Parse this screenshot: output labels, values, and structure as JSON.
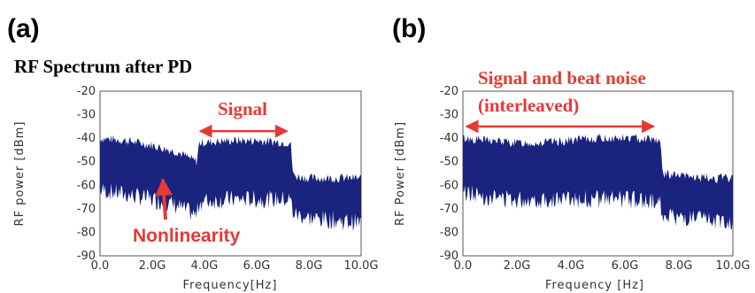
{
  "panels": {
    "a": {
      "letter": "(a)",
      "title": "RF Spectrum after PD"
    },
    "b": {
      "letter": "(b)"
    }
  },
  "colors": {
    "trace": "#1a237e",
    "annotation": "#e53935"
  },
  "chart_data": [
    {
      "type": "area",
      "panel": "a",
      "title": "RF Spectrum after PD",
      "xlabel": "Frequency[Hz]",
      "ylabel": "RF power [dBm]",
      "xlim": [
        0,
        10
      ],
      "ylim": [
        -90,
        -20
      ],
      "x_ticks": [
        0,
        2,
        4,
        6,
        8,
        10
      ],
      "x_tick_labels": [
        "0.0",
        "2.0G",
        "4.0G",
        "6.0G",
        "8.0G",
        "10.0G"
      ],
      "y_ticks": [
        -20,
        -30,
        -40,
        -50,
        -60,
        -70,
        -80,
        -90
      ],
      "y_tick_labels": [
        "-20",
        "-30",
        "-40",
        "-50",
        "-60",
        "-70",
        "-80",
        "-90"
      ],
      "series": [
        {
          "x": [
            0,
            1,
            2,
            3,
            3.7,
            3.8,
            5,
            6,
            7.3,
            7.4,
            8,
            9,
            10
          ],
          "upper": [
            -40,
            -41,
            -43,
            -46,
            -50,
            -42,
            -41,
            -41,
            -42,
            -56,
            -57,
            -57,
            -57
          ],
          "lower": [
            -62,
            -64,
            -66,
            -69,
            -73,
            -67,
            -66,
            -66,
            -66,
            -72,
            -74,
            -75,
            -76
          ]
        }
      ],
      "annotations": [
        {
          "text": "Signal",
          "type": "double-arrow",
          "x_start": 3.7,
          "x_end": 7.3,
          "y": -37
        },
        {
          "text": "Nonlinearity",
          "type": "arrow",
          "x": 3.0,
          "y": -50
        }
      ]
    },
    {
      "type": "area",
      "panel": "b",
      "xlabel": "Frequency [Hz]",
      "ylabel": "RF Power [dBm]",
      "xlim": [
        0,
        10
      ],
      "ylim": [
        -90,
        -20
      ],
      "x_ticks": [
        0,
        2,
        4,
        6,
        8,
        10
      ],
      "x_tick_labels": [
        "0.0",
        "2.0G",
        "4.0G",
        "6.0G",
        "8.0G",
        "10.0G"
      ],
      "y_ticks": [
        -20,
        -30,
        -40,
        -50,
        -60,
        -70,
        -80,
        -90
      ],
      "y_tick_labels": [
        "-20",
        "-30",
        "-40",
        "-50",
        "-60",
        "-70",
        "-80",
        "-90"
      ],
      "series": [
        {
          "x": [
            0,
            1,
            2,
            3,
            4,
            5,
            6,
            7,
            7.3,
            7.4,
            8,
            9,
            10
          ],
          "upper": [
            -40,
            -41,
            -42,
            -42,
            -41,
            -40,
            -40,
            -40,
            -41,
            -55,
            -56,
            -57,
            -57
          ],
          "lower": [
            -63,
            -65,
            -66,
            -66,
            -66,
            -66,
            -66,
            -67,
            -67,
            -72,
            -74,
            -75,
            -76
          ]
        }
      ],
      "annotations": [
        {
          "text": "Signal and beat noise",
          "type": "label",
          "x": 0.2,
          "y": -22
        },
        {
          "text": "(interleaved)",
          "type": "double-arrow",
          "x_start": 0,
          "x_end": 7.2,
          "y": -35
        }
      ]
    }
  ]
}
